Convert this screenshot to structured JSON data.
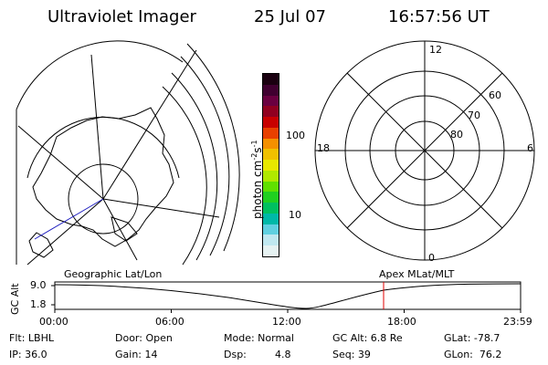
{
  "header": {
    "title": "Ultraviolet Imager",
    "date": "25 Jul 07",
    "time": "16:57:56 UT"
  },
  "colorbar": {
    "unit": "photon cm",
    "unit_exp1": "-2",
    "unit_s": "s",
    "unit_exp2": "-1",
    "tick_high": "100",
    "tick_low": "10",
    "colors": [
      "#1a0010",
      "#400030",
      "#6a0040",
      "#900020",
      "#c80000",
      "#e84000",
      "#f49000",
      "#f0c000",
      "#e8e800",
      "#b0e800",
      "#60e000",
      "#20d020",
      "#00c060",
      "#00b8a8",
      "#60d0e0",
      "#c0e8f0",
      "#e6f2f2"
    ]
  },
  "polar_plot": {
    "mlt_labels": {
      "top": "12",
      "left": "18",
      "right": "6",
      "bottom": "0"
    },
    "lat_labels": [
      "60",
      "70",
      "80"
    ]
  },
  "timeline": {
    "left_label": "Geographic Lat/Lon",
    "right_label": "Apex  MLat/MLT",
    "yaxis_label": "GC Alt",
    "ytick_high": "9.0",
    "ytick_low": "1.8",
    "xticks": [
      "00:00",
      "06:00",
      "12:00",
      "18:00",
      "23:59"
    ],
    "marker_time": "16:57:56",
    "marker_color": "#e00000"
  },
  "status": {
    "flt": "Flt: LBHL",
    "ip": "IP: 36.0",
    "door": "Door: Open",
    "gain": "Gain: 14",
    "mode": "Mode: Normal",
    "dsp_label": "Dsp:",
    "dsp_value": "4.8",
    "gc_alt": "GC Alt: 6.8 Re",
    "seq": "Seq: 39",
    "glat": "GLat: -78.7",
    "glon": "GLon:  76.2"
  }
}
